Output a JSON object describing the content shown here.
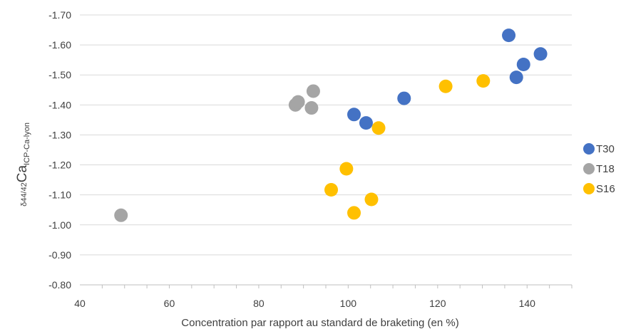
{
  "chart_data": {
    "type": "scatter",
    "title": "",
    "xlabel": "Concentration par rapport au standard de braketing (en %)",
    "ylabel": {
      "prefix": "δ44/42",
      "main": "Ca",
      "subscript": "ICP-Ca-lyon"
    },
    "xlim": [
      40,
      150
    ],
    "ylim": [
      -0.8,
      -1.7
    ],
    "x_ticks": [
      40,
      60,
      80,
      100,
      120,
      140
    ],
    "x_tick_labels": [
      "40",
      "60",
      "80",
      "100",
      "120",
      "140"
    ],
    "y_ticks": [
      -0.8,
      -0.9,
      -1.0,
      -1.1,
      -1.2,
      -1.3,
      -1.4,
      -1.5,
      -1.6,
      -1.7
    ],
    "y_tick_labels": [
      "-0.80",
      "-0.90",
      "-1.00",
      "-1.10",
      "-1.20",
      "-1.30",
      "-1.40",
      "-1.50",
      "-1.60",
      "-1.70"
    ],
    "y_inverted": true,
    "grid": "horizontal",
    "legend_position": "right",
    "series": [
      {
        "name": "T30",
        "color": "#4472c4",
        "points": [
          [
            101.3,
            -1.368
          ],
          [
            104.0,
            -1.34
          ],
          [
            112.5,
            -1.422
          ],
          [
            135.9,
            -1.632
          ],
          [
            137.6,
            -1.492
          ],
          [
            139.2,
            -1.535
          ],
          [
            143.0,
            -1.57
          ]
        ]
      },
      {
        "name": "T18",
        "color": "#a5a5a5",
        "points": [
          [
            49.2,
            -1.032
          ],
          [
            88.2,
            -1.4
          ],
          [
            88.8,
            -1.41
          ],
          [
            91.8,
            -1.39
          ],
          [
            92.2,
            -1.446
          ]
        ]
      },
      {
        "name": "S16",
        "color": "#ffc000",
        "points": [
          [
            96.2,
            -1.117
          ],
          [
            99.6,
            -1.187
          ],
          [
            101.3,
            -1.04
          ],
          [
            105.2,
            -1.085
          ],
          [
            106.8,
            -1.323
          ],
          [
            121.8,
            -1.462
          ],
          [
            130.2,
            -1.48
          ]
        ]
      }
    ]
  }
}
